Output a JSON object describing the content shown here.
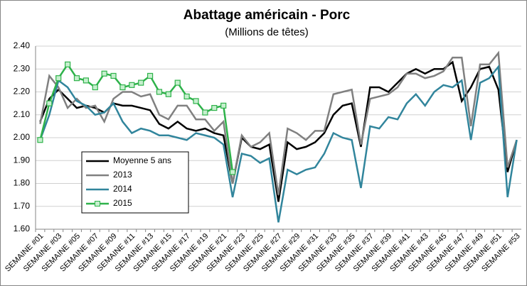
{
  "chart_data": {
    "type": "line",
    "title": "Abattage américain - Porc",
    "subtitle": "(Millions de têtes)",
    "categories": [
      "SEMAINE #01",
      null,
      "SEMAINE #03",
      null,
      "SEMAINE #05",
      null,
      "SEMAINE #07",
      null,
      "SEMAINE #09",
      null,
      "SEMAINE #11",
      null,
      "SEMAINE #13",
      null,
      "SEMAINE #15",
      null,
      "SEMAINE #17",
      null,
      "SEMAINE #19",
      null,
      "SEMAINE #21",
      null,
      "SEMAINE #23",
      null,
      "SEMAINE #25",
      null,
      "SEMAINE #27",
      null,
      "SEMAINE #29",
      null,
      "SEMAINE #31",
      null,
      "SEMAINE #33",
      null,
      "SEMAINE #35",
      null,
      "SEMAINE #37",
      null,
      "SEMAINE #39",
      null,
      "SEMAINE #41",
      null,
      "SEMAINE #43",
      null,
      "SEMAINE #45",
      null,
      "SEMAINE #47",
      null,
      "SEMAINE #49",
      null,
      "SEMAINE #51",
      null,
      "SEMAINE #53"
    ],
    "series": [
      {
        "name": "Moyenne 5 ans",
        "color": "#000000",
        "values": [
          2.07,
          2.17,
          2.21,
          2.17,
          2.13,
          2.14,
          2.13,
          2.11,
          2.15,
          2.14,
          2.14,
          2.13,
          2.12,
          2.06,
          2.04,
          2.07,
          2.04,
          2.03,
          2.04,
          2.02,
          2.01,
          1.8,
          2.0,
          1.96,
          1.95,
          1.97,
          1.72,
          1.98,
          1.95,
          1.96,
          1.98,
          2.02,
          2.1,
          2.14,
          2.15,
          1.96,
          2.22,
          2.22,
          2.2,
          2.24,
          2.28,
          2.3,
          2.28,
          2.3,
          2.3,
          2.33,
          2.16,
          2.22,
          2.3,
          2.31,
          2.21,
          1.85,
          1.99
        ]
      },
      {
        "name": "2013",
        "color": "#808080",
        "values": [
          2.06,
          2.27,
          2.22,
          2.13,
          2.17,
          2.13,
          2.14,
          2.07,
          2.17,
          2.2,
          2.2,
          2.18,
          2.19,
          2.1,
          2.08,
          2.14,
          2.14,
          2.08,
          2.08,
          2.03,
          2.07,
          1.8,
          2.01,
          1.96,
          1.98,
          2.02,
          1.75,
          2.04,
          2.02,
          1.99,
          2.03,
          2.03,
          2.19,
          2.2,
          2.21,
          1.97,
          2.17,
          2.18,
          2.19,
          2.22,
          2.28,
          2.28,
          2.26,
          2.27,
          2.29,
          2.35,
          2.35,
          2.05,
          2.32,
          2.32,
          2.37,
          1.87,
          1.99
        ]
      },
      {
        "name": "2014",
        "color": "#31859c",
        "values": [
          1.99,
          2.1,
          2.25,
          2.22,
          2.16,
          2.14,
          2.1,
          2.11,
          2.15,
          2.07,
          2.02,
          2.04,
          2.03,
          2.01,
          2.01,
          2.0,
          1.99,
          2.02,
          2.01,
          2.0,
          1.97,
          1.74,
          1.93,
          1.92,
          1.89,
          1.91,
          1.63,
          1.86,
          1.84,
          1.86,
          1.87,
          1.93,
          2.02,
          2.0,
          1.99,
          1.78,
          2.05,
          2.04,
          2.09,
          2.08,
          2.15,
          2.19,
          2.14,
          2.2,
          2.23,
          2.22,
          2.25,
          1.99,
          2.24,
          2.26,
          2.31,
          1.74,
          1.99
        ]
      },
      {
        "name": "2015",
        "color": "#2eb24a",
        "marker": "square",
        "values": [
          1.99,
          2.15,
          2.26,
          2.32,
          2.26,
          2.25,
          2.22,
          2.28,
          2.27,
          2.22,
          2.23,
          2.24,
          2.27,
          2.2,
          2.19,
          2.24,
          2.18,
          2.16,
          2.11,
          2.13,
          2.14,
          1.85,
          null,
          null,
          null,
          null,
          null,
          null,
          null,
          null,
          null,
          null,
          null,
          null,
          null,
          null,
          null,
          null,
          null,
          null,
          null,
          null,
          null,
          null,
          null,
          null,
          null,
          null,
          null,
          null,
          null,
          null,
          null
        ]
      }
    ],
    "ylim": [
      1.6,
      2.4
    ],
    "yticks": [
      {
        "value": 1.6,
        "label": "1.60"
      },
      {
        "value": 1.7,
        "label": "1.70"
      },
      {
        "value": 1.8,
        "label": "1.80"
      },
      {
        "value": 1.9,
        "label": "1.90"
      },
      {
        "value": 2.0,
        "label": "2.00"
      },
      {
        "value": 2.1,
        "label": "2.10"
      },
      {
        "value": 2.2,
        "label": "2.20"
      },
      {
        "value": 2.3,
        "label": "2.30"
      },
      {
        "value": 2.4,
        "label": "2.40"
      }
    ],
    "grid": true,
    "legend": "left"
  }
}
